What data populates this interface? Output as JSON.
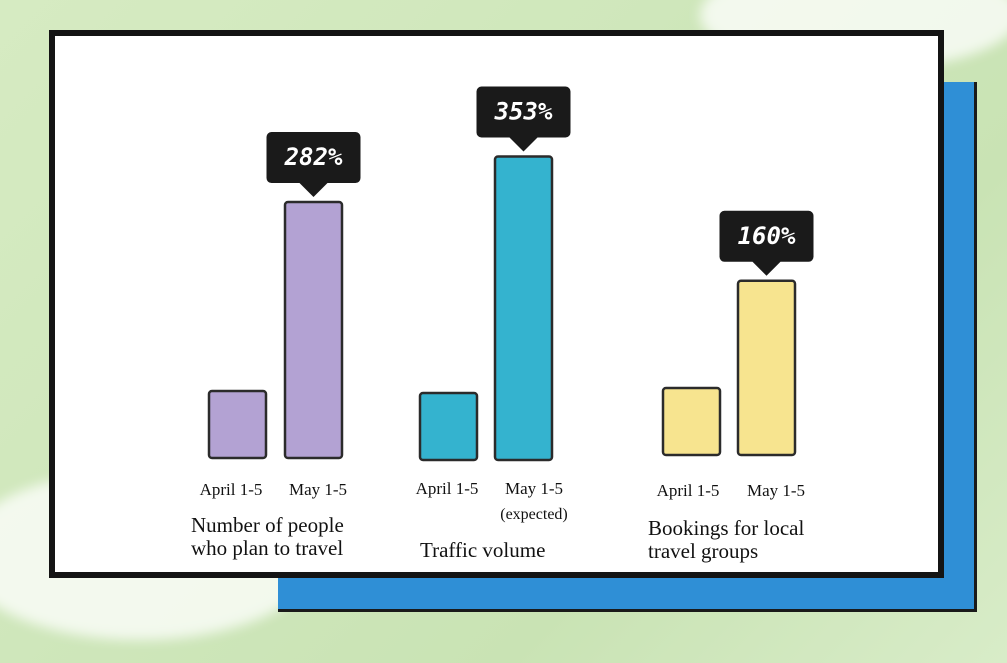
{
  "chart_data": {
    "type": "bar",
    "groups": [
      {
        "caption": [
          "Number of people",
          "who plan to travel"
        ],
        "categories": [
          "April 1-5",
          "May 1-5"
        ],
        "sublabels": [
          "",
          ""
        ],
        "values": [
          100,
          382
        ],
        "badge": "282%",
        "color": "#b3a2d3"
      },
      {
        "caption": [
          "Traffic volume"
        ],
        "categories": [
          "April 1-5",
          "May 1-5"
        ],
        "sublabels": [
          "",
          "(expected)"
        ],
        "values": [
          100,
          453
        ],
        "badge": "353%",
        "color": "#34b3cf"
      },
      {
        "caption": [
          "Bookings for local",
          "travel groups"
        ],
        "categories": [
          "April 1-5",
          "May 1-5"
        ],
        "sublabels": [
          "",
          ""
        ],
        "values": [
          100,
          260
        ],
        "badge": "160%",
        "color": "#f7e48f"
      }
    ]
  }
}
